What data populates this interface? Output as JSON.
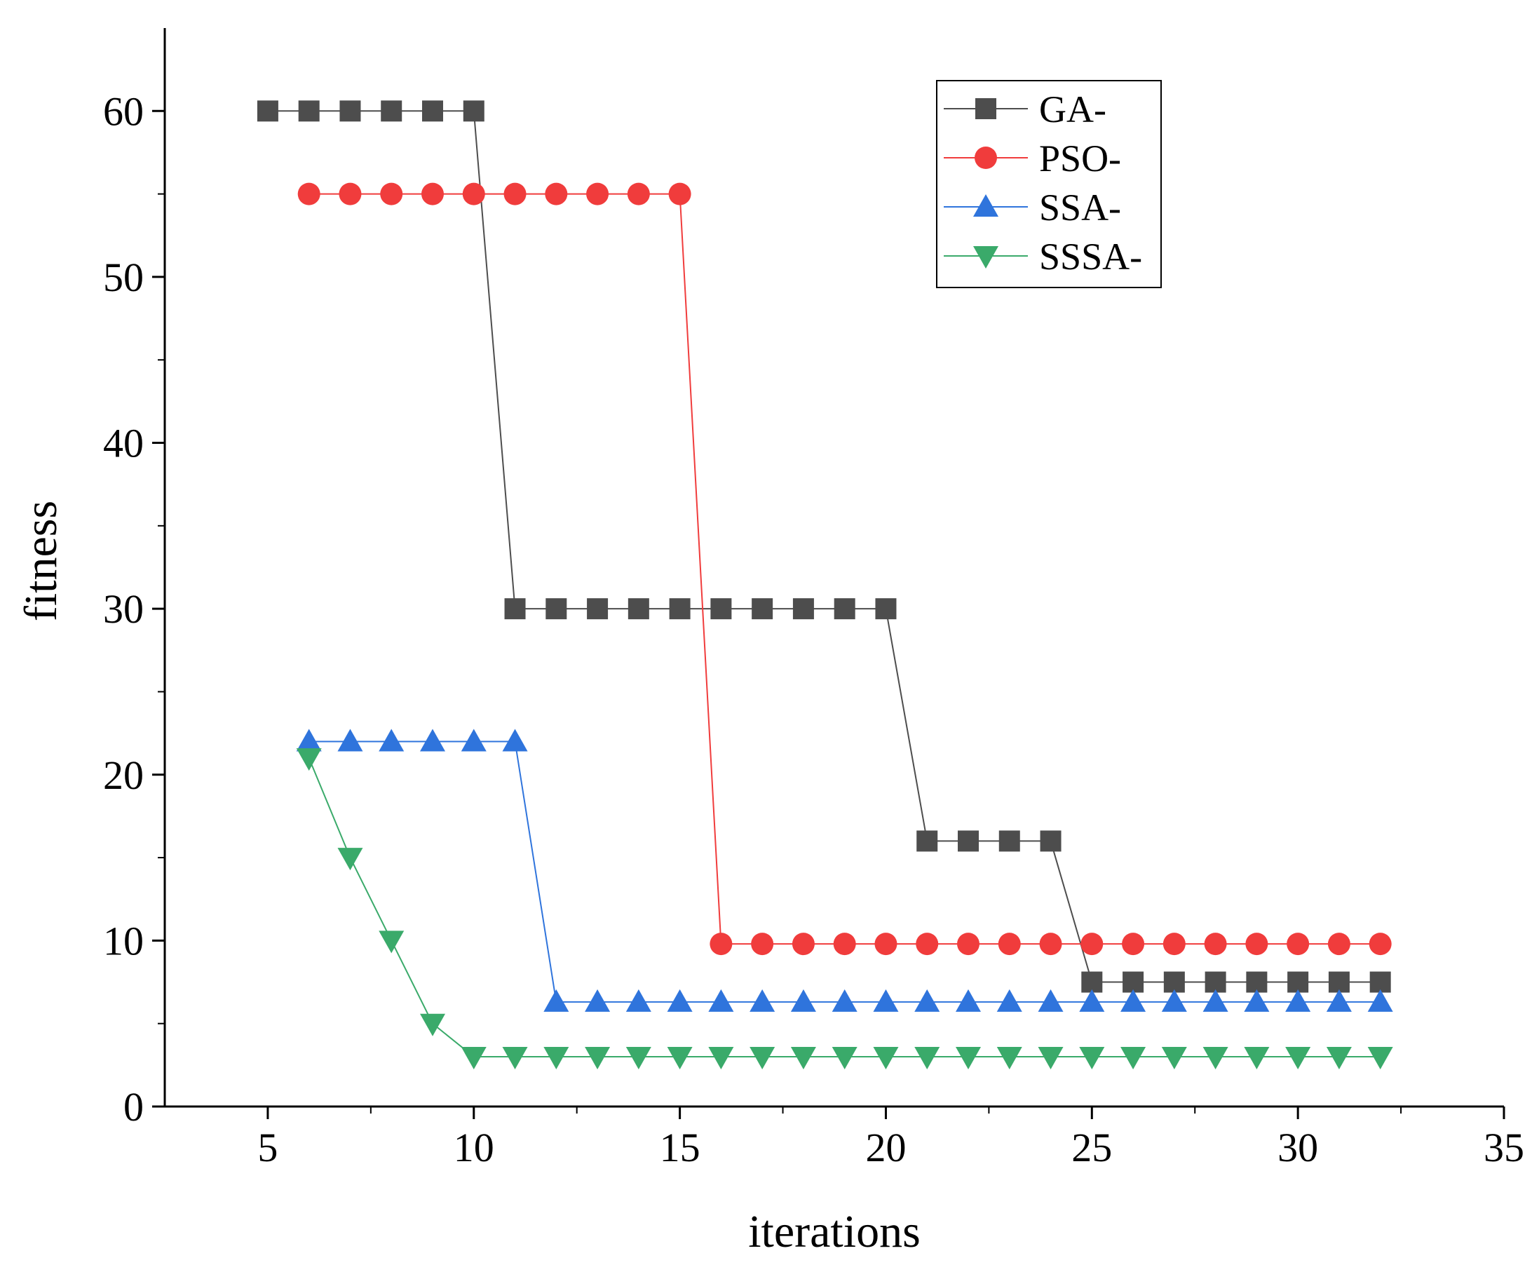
{
  "chart_data": {
    "type": "line",
    "title": "",
    "xlabel": "iterations",
    "ylabel": "fitness",
    "xlim": [
      2.5,
      35
    ],
    "ylim": [
      0,
      65
    ],
    "xticks": [
      5,
      10,
      15,
      20,
      25,
      30,
      35
    ],
    "yticks": [
      0,
      10,
      20,
      30,
      40,
      50,
      60
    ],
    "grid": false,
    "legend_position": "top-right",
    "series": [
      {
        "name": "GA-",
        "color": "#4d4d4d",
        "marker": "square",
        "x": [
          5,
          6,
          7,
          8,
          9,
          10,
          11,
          12,
          13,
          14,
          15,
          16,
          17,
          18,
          19,
          20,
          21,
          22,
          23,
          24,
          25,
          26,
          27,
          28,
          29,
          30,
          31,
          32
        ],
        "y": [
          60,
          60,
          60,
          60,
          60,
          60,
          30,
          30,
          30,
          30,
          30,
          30,
          30,
          30,
          30,
          30,
          16,
          16,
          16,
          16,
          7.5,
          7.5,
          7.5,
          7.5,
          7.5,
          7.5,
          7.5,
          7.5
        ]
      },
      {
        "name": "PSO-",
        "color": "#f03c3c",
        "marker": "circle",
        "x": [
          6,
          7,
          8,
          9,
          10,
          11,
          12,
          13,
          14,
          15,
          16,
          17,
          18,
          19,
          20,
          21,
          22,
          23,
          24,
          25,
          26,
          27,
          28,
          29,
          30,
          31,
          32
        ],
        "y": [
          55,
          55,
          55,
          55,
          55,
          55,
          55,
          55,
          55,
          55,
          9.8,
          9.8,
          9.8,
          9.8,
          9.8,
          9.8,
          9.8,
          9.8,
          9.8,
          9.8,
          9.8,
          9.8,
          9.8,
          9.8,
          9.8,
          9.8,
          9.8
        ]
      },
      {
        "name": "SSA-",
        "color": "#2f74dc",
        "marker": "triangle-up",
        "x": [
          6,
          7,
          8,
          9,
          10,
          11,
          12,
          13,
          14,
          15,
          16,
          17,
          18,
          19,
          20,
          21,
          22,
          23,
          24,
          25,
          26,
          27,
          28,
          29,
          30,
          31,
          32
        ],
        "y": [
          22,
          22,
          22,
          22,
          22,
          22,
          6.3,
          6.3,
          6.3,
          6.3,
          6.3,
          6.3,
          6.3,
          6.3,
          6.3,
          6.3,
          6.3,
          6.3,
          6.3,
          6.3,
          6.3,
          6.3,
          6.3,
          6.3,
          6.3,
          6.3,
          6.3
        ]
      },
      {
        "name": "SSSA-",
        "color": "#3aaa6a",
        "marker": "triangle-down",
        "x": [
          6,
          7,
          8,
          9,
          10,
          11,
          12,
          13,
          14,
          15,
          16,
          17,
          18,
          19,
          20,
          21,
          22,
          23,
          24,
          25,
          26,
          27,
          28,
          29,
          30,
          31,
          32
        ],
        "y": [
          21,
          15,
          10,
          5,
          3,
          3,
          3,
          3,
          3,
          3,
          3,
          3,
          3,
          3,
          3,
          3,
          3,
          3,
          3,
          3,
          3,
          3,
          3,
          3,
          3,
          3,
          3
        ]
      }
    ]
  }
}
